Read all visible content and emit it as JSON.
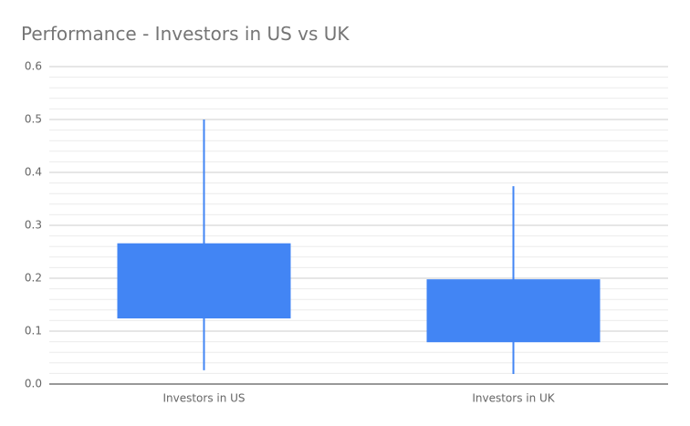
{
  "chart_data": {
    "type": "candlestick",
    "title": "Performance - Investors in US vs UK",
    "categories": [
      "Investors in US",
      "Investors in UK"
    ],
    "low": [
      0.026,
      0.019
    ],
    "box_bottom": [
      0.124,
      0.079
    ],
    "box_top": [
      0.266,
      0.198
    ],
    "high": [
      0.5,
      0.374
    ],
    "color": "#4285f4",
    "ylim": [
      0,
      0.6
    ],
    "yticks": [
      {
        "value": 0,
        "label": "0.0"
      },
      0.1,
      0.2,
      0.3,
      0.4,
      0.5,
      0.6
    ],
    "grid": true,
    "minor_gridlines": 4
  }
}
